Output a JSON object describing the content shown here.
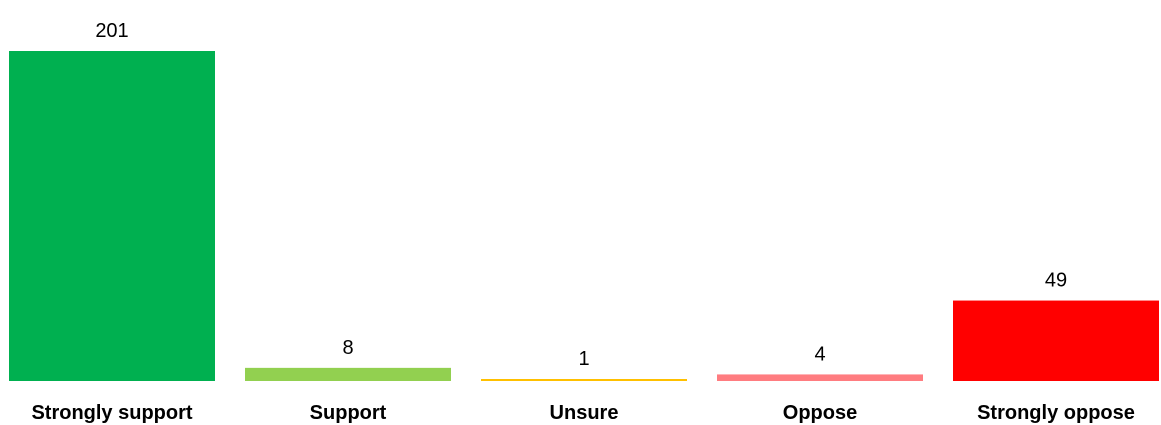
{
  "chart_data": {
    "type": "bar",
    "categories": [
      "Strongly support",
      "Support",
      "Unsure",
      "Oppose",
      "Strongly oppose"
    ],
    "values": [
      201,
      8,
      1,
      4,
      49
    ],
    "colors": [
      "#00b050",
      "#92d050",
      "#ffc000",
      "#ff7c80",
      "#ff0000"
    ],
    "title": "",
    "xlabel": "",
    "ylabel": "",
    "ylim": [
      0,
      201
    ],
    "grid": false,
    "data_labels": true,
    "legend": "none"
  }
}
